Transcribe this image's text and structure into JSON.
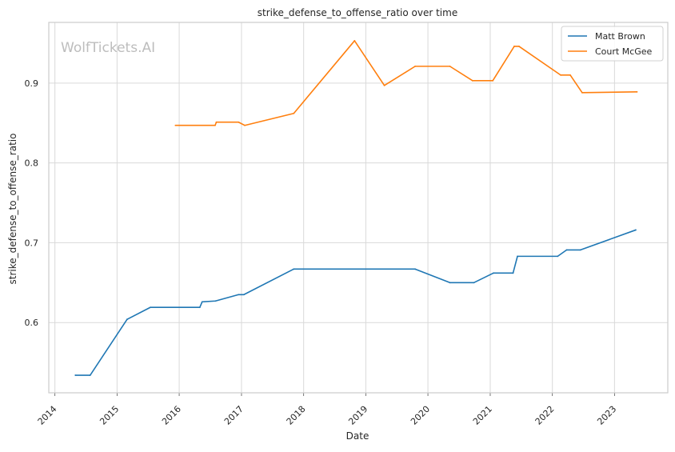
{
  "chart_data": {
    "type": "line",
    "title": "strike_defense_to_offense_ratio over time",
    "xlabel": "Date",
    "ylabel": "strike_defense_to_offense_ratio",
    "watermark": "WolfTickets.AI",
    "x_ticks": [
      "2014",
      "2015",
      "2016",
      "2017",
      "2018",
      "2019",
      "2020",
      "2021",
      "2022",
      "2023"
    ],
    "y_ticks": [
      "0.6",
      "0.7",
      "0.8",
      "0.9"
    ],
    "xlim": [
      "2013-11-26",
      "2023-11-10"
    ],
    "ylim": [
      0.512,
      0.976
    ],
    "grid": true,
    "legend_position": "top-right",
    "colors": {
      "Matt Brown": "#1f77b4",
      "Court McGee": "#ff7f0e",
      "grid": "#d9d9d9",
      "axes": "#cccccc"
    },
    "series": [
      {
        "name": "Matt Brown",
        "color": "#1f77b4",
        "x": [
          "2014-05-01",
          "2014-07-27",
          "2015-03-01",
          "2015-07-15",
          "2016-05-01",
          "2016-05-15",
          "2016-08-01",
          "2016-12-15",
          "2017-01-15",
          "2017-11-04",
          "2019-10-18",
          "2020-05-09",
          "2020-09-27",
          "2021-01-20",
          "2021-05-15",
          "2021-06-10",
          "2022-02-01",
          "2022-03-26",
          "2022-06-15",
          "2023-05-06"
        ],
        "values": [
          0.534,
          0.534,
          0.604,
          0.619,
          0.619,
          0.626,
          0.627,
          0.635,
          0.635,
          0.667,
          0.667,
          0.65,
          0.65,
          0.662,
          0.662,
          0.683,
          0.683,
          0.691,
          0.691,
          0.716
        ]
      },
      {
        "name": "Court McGee",
        "color": "#ff7f0e",
        "x": [
          "2015-12-10",
          "2016-07-30",
          "2016-08-06",
          "2016-12-15",
          "2017-01-20",
          "2017-11-04",
          "2018-10-27",
          "2019-04-20",
          "2019-10-18",
          "2020-05-09",
          "2020-09-19",
          "2021-01-16",
          "2021-05-22",
          "2021-06-19",
          "2022-02-19",
          "2022-04-16",
          "2022-06-25",
          "2023-05-13"
        ],
        "values": [
          0.847,
          0.847,
          0.851,
          0.851,
          0.847,
          0.862,
          0.953,
          0.897,
          0.921,
          0.921,
          0.903,
          0.903,
          0.946,
          0.946,
          0.91,
          0.91,
          0.888,
          0.889
        ]
      }
    ]
  }
}
